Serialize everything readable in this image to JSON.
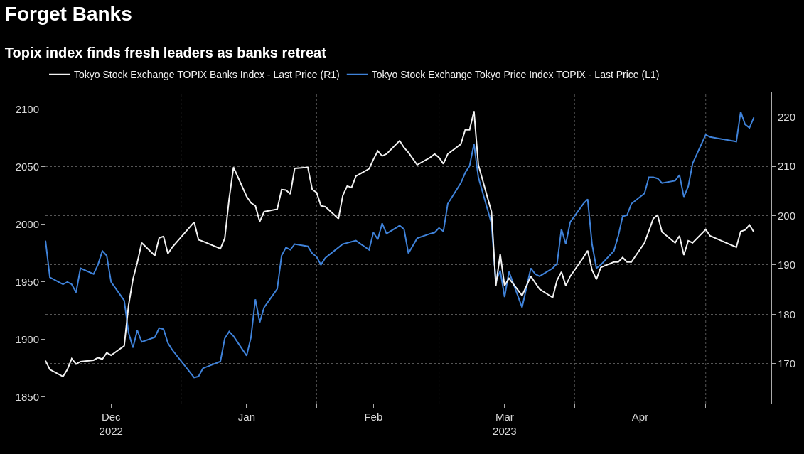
{
  "chart_data": {
    "type": "line",
    "title": "Forget Banks",
    "subtitle": "Topix index finds fresh leaders as banks retreat",
    "x": [
      "2022-12-01",
      "2022-12-02",
      "2022-12-05",
      "2022-12-06",
      "2022-12-07",
      "2022-12-08",
      "2022-12-09",
      "2022-12-12",
      "2022-12-13",
      "2022-12-14",
      "2022-12-15",
      "2022-12-16",
      "2022-12-19",
      "2022-12-20",
      "2022-12-21",
      "2022-12-22",
      "2022-12-23",
      "2022-12-26",
      "2022-12-27",
      "2022-12-28",
      "2022-12-29",
      "2022-12-30",
      "2023-01-04",
      "2023-01-05",
      "2023-01-06",
      "2023-01-10",
      "2023-01-11",
      "2023-01-12",
      "2023-01-13",
      "2023-01-16",
      "2023-01-17",
      "2023-01-18",
      "2023-01-19",
      "2023-01-20",
      "2023-01-23",
      "2023-01-24",
      "2023-01-25",
      "2023-01-26",
      "2023-01-27",
      "2023-01-30",
      "2023-01-31",
      "2023-02-01",
      "2023-02-02",
      "2023-02-03",
      "2023-02-06",
      "2023-02-07",
      "2023-02-08",
      "2023-02-09",
      "2023-02-10",
      "2023-02-13",
      "2023-02-14",
      "2023-02-15",
      "2023-02-16",
      "2023-02-17",
      "2023-02-20",
      "2023-02-21",
      "2023-02-22",
      "2023-02-24",
      "2023-02-27",
      "2023-02-28",
      "2023-03-01",
      "2023-03-02",
      "2023-03-03",
      "2023-03-06",
      "2023-03-07",
      "2023-03-08",
      "2023-03-09",
      "2023-03-10",
      "2023-03-13",
      "2023-03-14",
      "2023-03-15",
      "2023-03-16",
      "2023-03-17",
      "2023-03-20",
      "2023-03-22",
      "2023-03-23",
      "2023-03-24",
      "2023-03-27",
      "2023-03-28",
      "2023-03-29",
      "2023-03-30",
      "2023-03-31",
      "2023-04-03",
      "2023-04-04",
      "2023-04-05",
      "2023-04-06",
      "2023-04-07",
      "2023-04-10",
      "2023-04-11",
      "2023-04-12",
      "2023-04-13",
      "2023-04-14",
      "2023-04-17",
      "2023-04-18",
      "2023-04-19",
      "2023-04-20",
      "2023-04-21",
      "2023-04-24",
      "2023-04-25",
      "2023-04-26",
      "2023-04-27",
      "2023-04-28",
      "2023-05-01",
      "2023-05-02",
      "2023-05-08",
      "2023-05-09",
      "2023-05-10",
      "2023-05-11",
      "2023-05-12"
    ],
    "series": [
      {
        "name": "Tokyo Stock Exchange TOPIX Banks Index - Last Price (R1)",
        "color": "#f2f2f2",
        "axis": "y2",
        "values": [
          170.6,
          168.8,
          167.4,
          168.8,
          171.0,
          169.9,
          170.4,
          170.7,
          171.2,
          170.9,
          172.2,
          171.7,
          173.6,
          181.8,
          187.1,
          190.5,
          194.5,
          191.9,
          195.5,
          195.8,
          192.3,
          193.6,
          198.7,
          195.1,
          194.8,
          193.3,
          195.4,
          203.4,
          209.8,
          203.9,
          202.6,
          202.0,
          198.8,
          200.8,
          201.3,
          205.3,
          205.2,
          204.4,
          209.6,
          209.8,
          205.3,
          204.7,
          202.0,
          201.8,
          199.4,
          204.1,
          206.0,
          205.7,
          208.0,
          209.5,
          211.4,
          213.1,
          212.1,
          212.5,
          215.2,
          213.8,
          212.8,
          210.3,
          211.8,
          212.5,
          211.8,
          210.5,
          212.5,
          214.5,
          217.4,
          217.4,
          221.2,
          210.3,
          200.8,
          185.8,
          192.2,
          185.8,
          187.3,
          183.8,
          187.7,
          186.4,
          185.1,
          183.4,
          186.9,
          188.6,
          185.8,
          187.7,
          191.5,
          192.9,
          189.0,
          187.1,
          189.5,
          190.6,
          190.6,
          191.5,
          190.6,
          190.6,
          194.5,
          196.9,
          199.4,
          200.1,
          196.7,
          194.5,
          195.9,
          192.0,
          194.9,
          194.5,
          197.2,
          195.9,
          193.6,
          196.8,
          197.1,
          198.1,
          196.7
        ]
      },
      {
        "name": "Tokyo Stock Exchange Tokyo Price Index TOPIX - Last Price (L1)",
        "color": "#3f82d9",
        "axis": "y",
        "values": [
          1986,
          1954,
          1948,
          1950,
          1948,
          1941,
          1962,
          1957,
          1965,
          1977,
          1973,
          1950,
          1934,
          1906,
          1893,
          1908,
          1898,
          1902,
          1910,
          1909,
          1897,
          1891,
          1867,
          1868,
          1875,
          1881,
          1901,
          1907,
          1903,
          1886,
          1902,
          1935,
          1915,
          1928,
          1944,
          1973,
          1980,
          1978,
          1983,
          1981,
          1975,
          1972,
          1965,
          1971,
          1980,
          1983,
          1984,
          1985,
          1986,
          1978,
          1993,
          1987,
          2001,
          1992,
          1999,
          1996,
          1975,
          1988,
          1992,
          1993,
          1997,
          1994,
          2018,
          2036,
          2045,
          2051,
          2070,
          2041,
          2001,
          1950,
          1960,
          1937,
          1959,
          1928,
          1962,
          1957,
          1955,
          1962,
          1966,
          1996,
          1983,
          2002,
          2018,
          2022,
          1983,
          1962,
          1965,
          1977,
          1990,
          2007,
          2008,
          2018,
          2027,
          2041,
          2041,
          2040,
          2036,
          2038,
          2043,
          2024,
          2033,
          2053,
          2078,
          2076,
          2072,
          2098,
          2087,
          2084,
          2093
        ]
      }
    ],
    "xlim": [
      "2022-12-01",
      "2023-05-16"
    ],
    "xticks": [
      {
        "value": "2022-12-16",
        "label": "Dec\n2022"
      },
      {
        "value": "2023-01-01",
        "label": null
      },
      {
        "value": "2023-01-16",
        "label": "Jan"
      },
      {
        "value": "2023-02-01",
        "label": null
      },
      {
        "value": "2023-02-14",
        "label": "Feb"
      },
      {
        "value": "2023-03-01",
        "label": null
      },
      {
        "value": "2023-03-16",
        "label": "Mar\n2023"
      },
      {
        "value": "2023-04-01",
        "label": null
      },
      {
        "value": "2023-04-16",
        "label": "Apr"
      },
      {
        "value": "2023-05-01",
        "label": null
      }
    ],
    "ylim": [
      1844.4,
      2114.8
    ],
    "yticks": [
      1850,
      1900,
      1950,
      2000,
      2050,
      2100
    ],
    "y2lim": [
      161.9,
      225.0
    ],
    "y2ticks": [
      170,
      180,
      190,
      200,
      210,
      220
    ],
    "grid": true,
    "legend": "top left",
    "line_style": "solid",
    "marker": "none"
  }
}
